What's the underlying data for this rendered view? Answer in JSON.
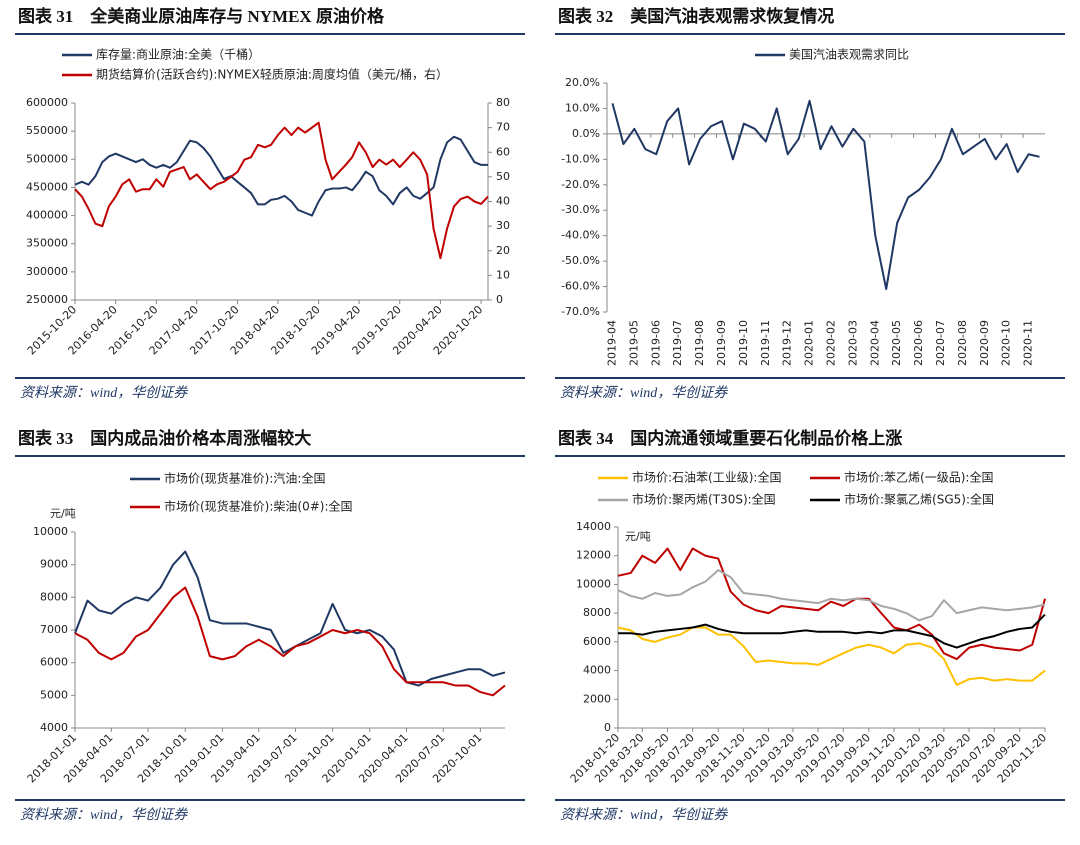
{
  "chart_data": [
    {
      "type": "line",
      "title": "图表 31　全美商业原油库存与 NYMEX 原油价格",
      "source": "资料来源：wind，华创证券",
      "x": [
        "2015-10-20",
        "2015-11-20",
        "2015-12-20",
        "2016-01-20",
        "2016-02-20",
        "2016-03-20",
        "2016-04-20",
        "2016-05-20",
        "2016-06-20",
        "2016-07-20",
        "2016-08-20",
        "2016-09-20",
        "2016-10-20",
        "2016-11-20",
        "2016-12-20",
        "2017-01-20",
        "2017-02-20",
        "2017-03-20",
        "2017-04-20",
        "2017-05-20",
        "2017-06-20",
        "2017-07-20",
        "2017-08-20",
        "2017-09-20",
        "2017-10-20",
        "2017-11-20",
        "2017-12-20",
        "2018-01-20",
        "2018-02-20",
        "2018-03-20",
        "2018-04-20",
        "2018-05-20",
        "2018-06-20",
        "2018-07-20",
        "2018-08-20",
        "2018-09-20",
        "2018-10-20",
        "2018-11-20",
        "2018-12-20",
        "2019-01-20",
        "2019-02-20",
        "2019-03-20",
        "2019-04-20",
        "2019-05-20",
        "2019-06-20",
        "2019-07-20",
        "2019-08-20",
        "2019-09-20",
        "2019-10-20",
        "2019-11-20",
        "2019-12-20",
        "2020-01-20",
        "2020-02-20",
        "2020-03-20",
        "2020-04-20",
        "2020-05-20",
        "2020-06-20",
        "2020-07-20",
        "2020-08-20",
        "2020-09-20",
        "2020-10-20",
        "2020-11-20"
      ],
      "xlim": [
        "2015-10-20",
        "2020-11-20"
      ],
      "xticks": [
        "2015-10-20",
        "2016-04-20",
        "2016-10-20",
        "2017-04-20",
        "2017-10-20",
        "2018-04-20",
        "2018-10-20",
        "2019-04-20",
        "2019-10-20",
        "2020-04-20",
        "2020-10-20"
      ],
      "ylim": [
        250000,
        600000
      ],
      "yticks": [
        250000,
        300000,
        350000,
        400000,
        450000,
        500000,
        550000,
        600000
      ],
      "y2lim": [
        0,
        80
      ],
      "y2ticks": [
        0,
        10,
        20,
        30,
        40,
        50,
        60,
        70,
        80
      ],
      "series": [
        {
          "name": "库存量:商业原油:全美（千桶）",
          "color": "#203864",
          "values": [
            455000,
            460000,
            455000,
            470000,
            495000,
            505000,
            510000,
            505000,
            500000,
            495000,
            500000,
            490000,
            485000,
            490000,
            485000,
            495000,
            515000,
            533000,
            530000,
            520000,
            505000,
            485000,
            465000,
            470000,
            460000,
            450000,
            440000,
            420000,
            420000,
            428000,
            430000,
            435000,
            425000,
            410000,
            405000,
            400000,
            425000,
            445000,
            448000,
            448000,
            450000,
            445000,
            460000,
            478000,
            470000,
            445000,
            435000,
            420000,
            440000,
            450000,
            435000,
            430000,
            440000,
            450000,
            500000,
            530000,
            540000,
            535000,
            515000,
            495000,
            490000,
            490000
          ]
        },
        {
          "name": "期货结算价(活跃合约):NYMEX轻质原油:周度均值（美元/桶，右）",
          "color": "#c00000",
          "axis": "y2",
          "values": [
            45,
            42,
            37,
            31,
            30,
            38,
            42,
            47,
            49,
            44,
            45,
            45,
            49,
            46,
            52,
            53,
            54,
            49,
            51,
            48,
            45,
            47,
            48,
            50,
            52,
            57,
            58,
            63,
            62,
            63,
            67,
            70,
            67,
            70,
            68,
            70,
            72,
            57,
            49,
            52,
            55,
            58,
            64,
            60,
            54,
            57,
            55,
            57,
            54,
            57,
            60,
            57,
            51,
            29,
            17,
            29,
            38,
            41,
            42,
            40,
            39,
            42
          ]
        }
      ]
    },
    {
      "type": "line",
      "title": "图表 32　美国汽油表观需求恢复情况",
      "source": "资料来源：wind，华创证券",
      "categories": [
        "2019-04",
        null,
        "2019-05",
        null,
        "2019-06",
        null,
        "2019-07",
        null,
        "2019-08",
        null,
        "2019-09",
        null,
        "2019-10",
        null,
        "2019-11",
        null,
        "2019-12",
        null,
        "2020-01",
        null,
        "2020-02",
        null,
        "2020-03",
        null,
        "2020-04",
        null,
        "2020-05",
        null,
        "2020-06",
        null,
        "2020-07",
        null,
        "2020-08",
        null,
        "2020-09",
        null,
        "2020-10",
        null,
        "2020-11",
        null
      ],
      "ylim": [
        -70,
        20
      ],
      "yticks": [
        {
          "value": 20,
          "label": "20.0%"
        },
        {
          "value": 10,
          "label": "10.0%"
        },
        {
          "value": 0,
          "label": "0.0%"
        },
        {
          "value": -10,
          "label": "-10.0%"
        },
        {
          "value": -20,
          "label": "-20.0%"
        },
        {
          "value": -30,
          "label": "-30.0%"
        },
        {
          "value": -40,
          "label": "-40.0%"
        },
        {
          "value": -50,
          "label": "-50.0%"
        },
        {
          "value": -60,
          "label": "-60.0%"
        },
        {
          "value": -70,
          "label": "-70.0%"
        }
      ],
      "series": [
        {
          "name": "美国汽油表观需求同比",
          "color": "#203864",
          "values": [
            12,
            -4,
            2,
            -6,
            -8,
            5,
            10,
            -12,
            -2,
            3,
            5,
            -10,
            4,
            2,
            -3,
            10,
            -8,
            -2,
            13,
            -6,
            3,
            -5,
            2,
            -3,
            -40,
            -61,
            -35,
            -25,
            -22,
            -17,
            -10,
            2,
            -8,
            -5,
            -2,
            -10,
            -4,
            -15,
            -8,
            -9
          ]
        }
      ]
    },
    {
      "type": "line",
      "title": "图表 33　国内成品油价格本周涨幅较大",
      "source": "资料来源：wind，华创证券",
      "ylabel": "元/吨",
      "x": [
        "2018-01-01",
        "2018-02-01",
        "2018-03-01",
        "2018-04-01",
        "2018-05-01",
        "2018-06-01",
        "2018-07-01",
        "2018-08-01",
        "2018-09-01",
        "2018-10-01",
        "2018-11-01",
        "2018-12-01",
        "2019-01-01",
        "2019-02-01",
        "2019-03-01",
        "2019-04-01",
        "2019-05-01",
        "2019-06-01",
        "2019-07-01",
        "2019-08-01",
        "2019-09-01",
        "2019-10-01",
        "2019-11-01",
        "2019-12-01",
        "2020-01-01",
        "2020-02-01",
        "2020-03-01",
        "2020-04-01",
        "2020-05-01",
        "2020-06-01",
        "2020-07-01",
        "2020-08-01",
        "2020-09-01",
        "2020-10-01",
        "2020-11-01",
        "2020-12-01"
      ],
      "xlim": [
        "2018-01-01",
        "2020-12-01"
      ],
      "xticks": [
        "2018-01-01",
        "2018-04-01",
        "2018-07-01",
        "2018-10-01",
        "2019-01-01",
        "2019-04-01",
        "2019-07-01",
        "2019-10-01",
        "2020-01-01",
        "2020-04-01",
        "2020-07-01",
        "2020-10-01"
      ],
      "ylim": [
        4000,
        10000
      ],
      "yticks": [
        4000,
        5000,
        6000,
        7000,
        8000,
        9000,
        10000
      ],
      "series": [
        {
          "name": "市场价(现货基准价):汽油:全国",
          "color": "#203864",
          "values": [
            6900,
            7900,
            7600,
            7500,
            7800,
            8000,
            7900,
            8300,
            9000,
            9400,
            8600,
            7300,
            7200,
            7200,
            7200,
            7100,
            7000,
            6300,
            6500,
            6700,
            6900,
            7800,
            7000,
            6900,
            7000,
            6800,
            6400,
            5400,
            5300,
            5500,
            5600,
            5700,
            5800,
            5800,
            5600,
            5700
          ]
        },
        {
          "name": "市场价(现货基准价):柴油(0#):全国",
          "color": "#c00000",
          "values": [
            6900,
            6700,
            6300,
            6100,
            6300,
            6800,
            7000,
            7500,
            8000,
            8300,
            7400,
            6200,
            6100,
            6200,
            6500,
            6700,
            6500,
            6200,
            6500,
            6600,
            6800,
            7000,
            6900,
            7000,
            6900,
            6500,
            5800,
            5400,
            5400,
            5400,
            5400,
            5300,
            5300,
            5100,
            5000,
            5300
          ]
        }
      ]
    },
    {
      "type": "line",
      "title": "图表 34　国内流通领域重要石化制品价格上涨",
      "source": "资料来源：wind，华创证券",
      "ylabel": "元/吨",
      "x": [
        "2018-01-20",
        "2018-02-20",
        "2018-03-20",
        "2018-04-20",
        "2018-05-20",
        "2018-06-20",
        "2018-07-20",
        "2018-08-20",
        "2018-09-20",
        "2018-10-20",
        "2018-11-20",
        "2018-12-20",
        "2019-01-20",
        "2019-02-20",
        "2019-03-20",
        "2019-04-20",
        "2019-05-20",
        "2019-06-20",
        "2019-07-20",
        "2019-08-20",
        "2019-09-20",
        "2019-10-20",
        "2019-11-20",
        "2019-12-20",
        "2020-01-20",
        "2020-02-20",
        "2020-03-20",
        "2020-04-20",
        "2020-05-20",
        "2020-06-20",
        "2020-07-20",
        "2020-08-20",
        "2020-09-20",
        "2020-10-20",
        "2020-11-20"
      ],
      "xlim": [
        "2018-01-20",
        "2020-11-20"
      ],
      "xticks": [
        "2018-01-20",
        "2018-03-20",
        "2018-05-20",
        "2018-07-20",
        "2018-09-20",
        "2018-11-20",
        "2019-01-20",
        "2019-03-20",
        "2019-05-20",
        "2019-07-20",
        "2019-09-20",
        "2019-11-20",
        "2020-01-20",
        "2020-03-20",
        "2020-05-20",
        "2020-07-20",
        "2020-09-20",
        "2020-11-20"
      ],
      "ylim": [
        0,
        14000
      ],
      "yticks": [
        0,
        2000,
        4000,
        6000,
        8000,
        10000,
        12000,
        14000
      ],
      "series": [
        {
          "name": "市场价:石油苯(工业级):全国",
          "color": "#ffc000",
          "values": [
            7000,
            6800,
            6200,
            6000,
            6300,
            6500,
            7000,
            7000,
            6500,
            6500,
            5700,
            4600,
            4700,
            4600,
            4500,
            4500,
            4400,
            4800,
            5200,
            5600,
            5800,
            5600,
            5200,
            5800,
            5900,
            5600,
            4800,
            3000,
            3400,
            3500,
            3300,
            3400,
            3300,
            3300,
            4000
          ]
        },
        {
          "name": "市场价:苯乙烯(一级品):全国",
          "color": "#c00000",
          "values": [
            10600,
            10800,
            12000,
            11500,
            12500,
            11000,
            12500,
            12000,
            11800,
            9500,
            8600,
            8200,
            8000,
            8500,
            8400,
            8300,
            8200,
            8800,
            8500,
            9000,
            9000,
            8000,
            7000,
            6800,
            7200,
            6500,
            5200,
            4800,
            5600,
            5800,
            5600,
            5500,
            5400,
            5800,
            9000
          ]
        },
        {
          "name": "市场价:聚丙烯(T30S):全国",
          "color": "#a6a6a6",
          "values": [
            9600,
            9200,
            9000,
            9400,
            9200,
            9300,
            9800,
            10200,
            11000,
            10500,
            9400,
            9300,
            9200,
            9000,
            8900,
            8800,
            8700,
            9000,
            8900,
            9000,
            8900,
            8500,
            8300,
            8000,
            7500,
            7800,
            8900,
            8000,
            8200,
            8400,
            8300,
            8200,
            8300,
            8400,
            8600
          ]
        },
        {
          "name": "市场价:聚氯乙烯(SG5):全国",
          "color": "#000000",
          "values": [
            6600,
            6600,
            6500,
            6700,
            6800,
            6900,
            7000,
            7200,
            6900,
            6700,
            6600,
            6600,
            6600,
            6600,
            6700,
            6800,
            6700,
            6700,
            6700,
            6600,
            6700,
            6600,
            6800,
            6800,
            6600,
            6400,
            5900,
            5600,
            5900,
            6200,
            6400,
            6700,
            6900,
            7000,
            7900
          ]
        }
      ]
    }
  ]
}
